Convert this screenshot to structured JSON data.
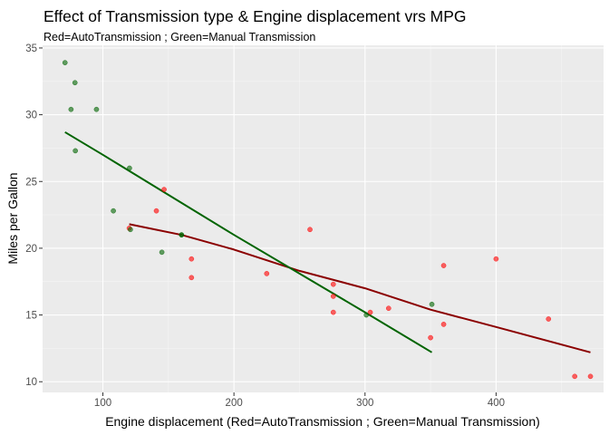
{
  "chart_data": {
    "type": "scatter",
    "title": "Effect of Transmission type & Engine displacement vrs MPG",
    "subtitle": "Red=AutoTransmission ; Green=Manual Transmission",
    "xlabel": "Engine displacement (Red=AutoTransmission ; Green=Manual Transmission)",
    "ylabel": "Miles per Gallon",
    "xlim": [
      54,
      482
    ],
    "ylim": [
      9.2,
      35.2
    ],
    "xticks": [
      100,
      200,
      300,
      400
    ],
    "yticks": [
      10,
      15,
      20,
      25,
      30,
      35
    ],
    "grid": true,
    "background": "#ebebeb",
    "series": [
      {
        "transmission": "auto",
        "color": "#ff0000",
        "line_color": "#8b0000",
        "points": [
          [
            258,
            21.4
          ],
          [
            360,
            18.7
          ],
          [
            225,
            18.1
          ],
          [
            360,
            14.3
          ],
          [
            146.7,
            24.4
          ],
          [
            140.8,
            22.8
          ],
          [
            167.6,
            19.2
          ],
          [
            167.6,
            17.8
          ],
          [
            275.8,
            16.4
          ],
          [
            275.8,
            17.3
          ],
          [
            275.8,
            15.2
          ],
          [
            472,
            10.4
          ],
          [
            460,
            10.4
          ],
          [
            440,
            14.7
          ],
          [
            120.1,
            21.5
          ],
          [
            318,
            15.5
          ],
          [
            304,
            15.2
          ],
          [
            350,
            13.3
          ],
          [
            400,
            19.2
          ]
        ],
        "fit": [
          [
            120.1,
            21.8
          ],
          [
            160,
            21.0
          ],
          [
            200,
            19.9
          ],
          [
            250,
            18.3
          ],
          [
            300,
            17.0
          ],
          [
            350,
            15.4
          ],
          [
            400,
            14.1
          ],
          [
            472,
            12.2
          ]
        ]
      },
      {
        "transmission": "manual",
        "color": "#006400",
        "line_color": "#006400",
        "points": [
          [
            160,
            21.0
          ],
          [
            160,
            21.0
          ],
          [
            108,
            22.8
          ],
          [
            78.7,
            32.4
          ],
          [
            75.7,
            30.4
          ],
          [
            71.1,
            33.9
          ],
          [
            79,
            27.3
          ],
          [
            120.3,
            26.0
          ],
          [
            95.1,
            30.4
          ],
          [
            351,
            15.8
          ],
          [
            145,
            19.7
          ],
          [
            301,
            15.0
          ],
          [
            121,
            21.4
          ]
        ],
        "fit": [
          [
            71.1,
            28.7
          ],
          [
            100,
            27.0
          ],
          [
            150,
            24.0
          ],
          [
            200,
            21.0
          ],
          [
            250,
            18.1
          ],
          [
            300,
            15.2
          ],
          [
            351,
            12.2
          ]
        ]
      }
    ]
  }
}
